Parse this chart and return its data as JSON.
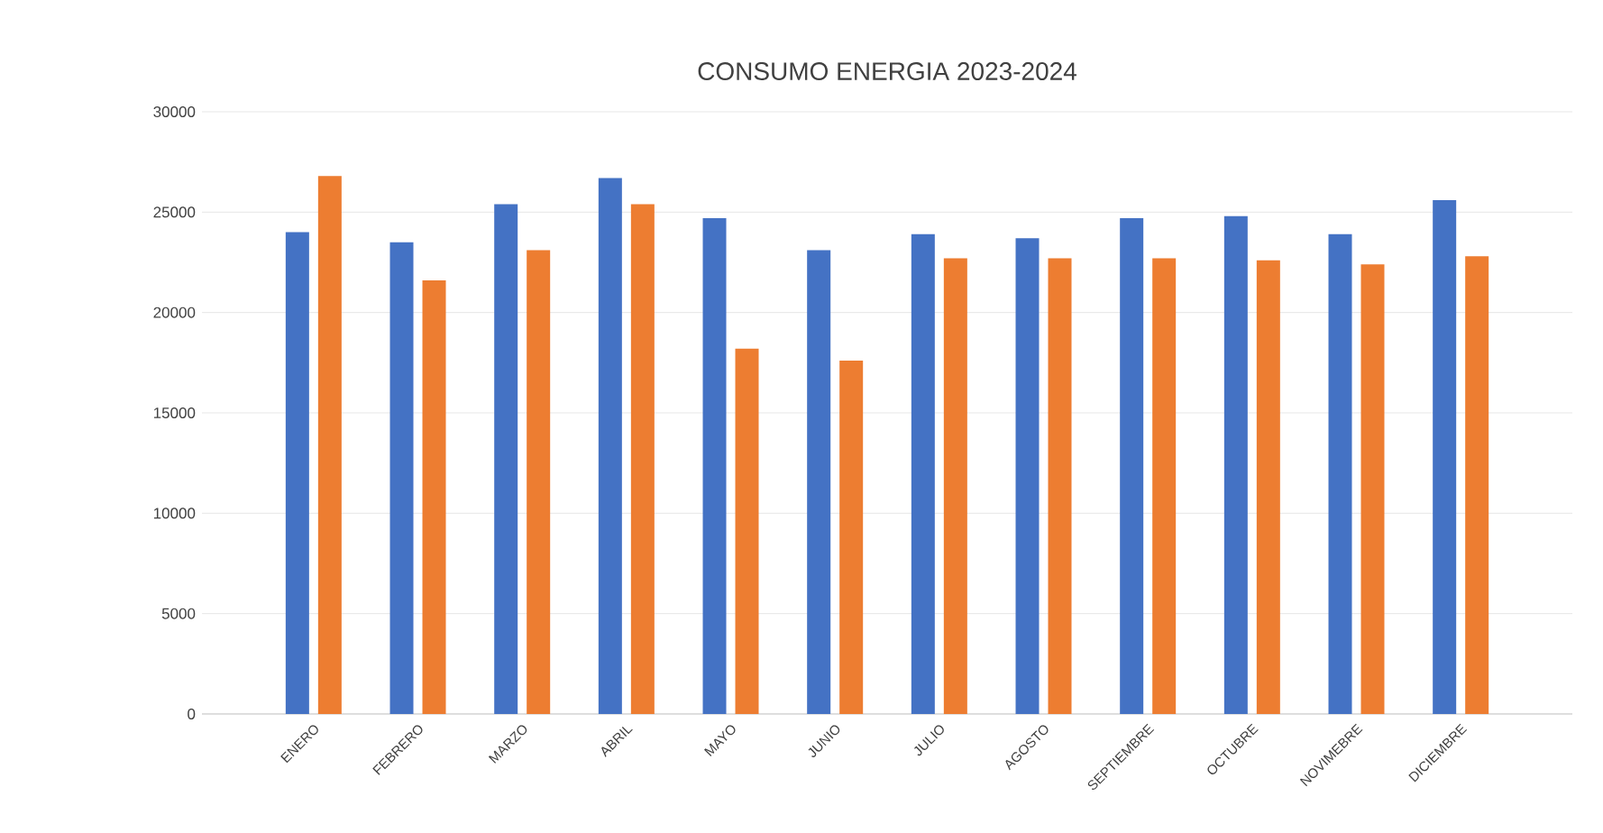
{
  "chart_data": {
    "type": "bar",
    "title": "CONSUMO ENERGIA  2023-2024",
    "categories": [
      "ENERO",
      "FEBRERO",
      "MARZO",
      "ABRIL",
      "MAYO",
      "JUNIO",
      "JULIO",
      "AGOSTO",
      "SEPTIEMBRE",
      "OCTUBRE",
      "NOVIMEBRE",
      "DICIEMBRE"
    ],
    "series": [
      {
        "color": "#4472c4",
        "values": [
          24000,
          23500,
          25400,
          26700,
          24700,
          23100,
          23900,
          23700,
          24700,
          24800,
          23900,
          25600
        ]
      },
      {
        "color": "#ed7d31",
        "values": [
          26800,
          21600,
          23100,
          25400,
          18200,
          17600,
          22700,
          22700,
          22700,
          22600,
          22400,
          22800
        ]
      }
    ],
    "ylim": [
      0,
      30000
    ],
    "yticks": [
      0,
      5000,
      10000,
      15000,
      20000,
      25000,
      30000
    ],
    "grid": "y"
  }
}
